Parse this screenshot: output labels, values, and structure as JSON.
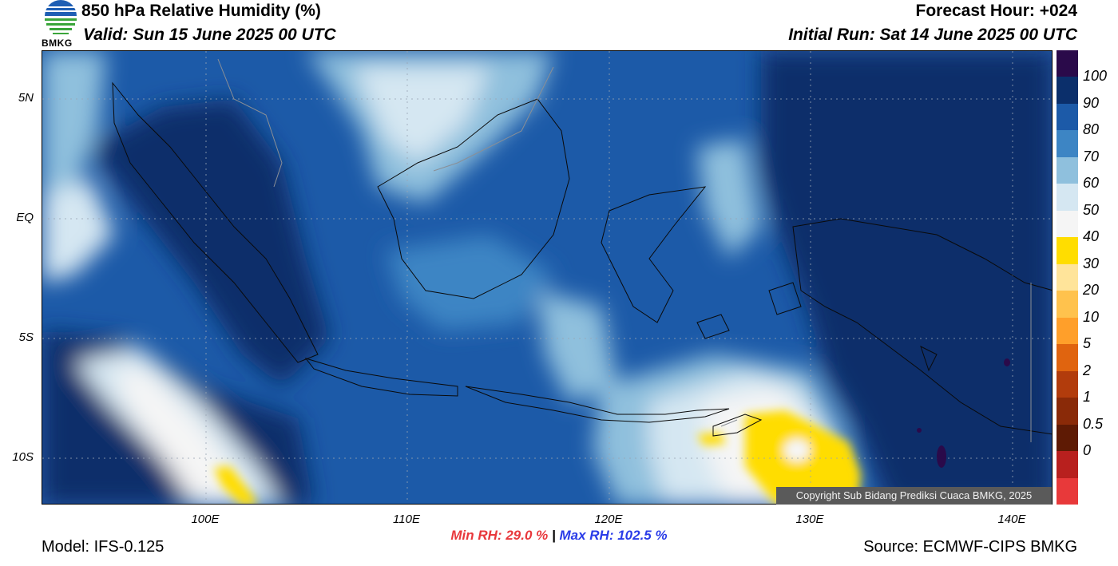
{
  "header": {
    "title": "850 hPa Relative Humidity (%)",
    "valid": "Valid: Sun 15 June 2025 00 UTC",
    "forecast_hour": "Forecast Hour: +024",
    "initial_run": "Initial Run: Sat 14 June 2025 00 UTC",
    "logo_text": "BMKG"
  },
  "map": {
    "lat_labels": [
      "5N",
      "EQ",
      "5S",
      "10S"
    ],
    "lon_labels": [
      "100E",
      "110E",
      "120E",
      "130E",
      "140E"
    ],
    "copyright": "Copyright Sub Bidang Prediksi Cuaca BMKG, 2025"
  },
  "colorbar": {
    "labels": [
      "100",
      "90",
      "80",
      "70",
      "60",
      "50",
      "40",
      "30",
      "20",
      "10",
      "5",
      "2",
      "1",
      "0.5",
      "0"
    ],
    "colors": [
      "#2a0a4a",
      "#0b2f6b",
      "#1c5aa8",
      "#3d85c4",
      "#8fc0dd",
      "#d5e7f2",
      "#f5f5f5",
      "#ffdd00",
      "#ffe49a",
      "#ffc24d",
      "#ff9f2a",
      "#e0640f",
      "#b23c0c",
      "#8a2a08",
      "#5e1a04",
      "#b8201e",
      "#e8393a"
    ]
  },
  "footer": {
    "min_rh": "Min RH:  29.0 %",
    "separator": "|",
    "max_rh": "Max RH: 102.5 %",
    "model": "Model: IFS-0.125",
    "source": "Source: ECMWF-CIPS BMKG"
  }
}
